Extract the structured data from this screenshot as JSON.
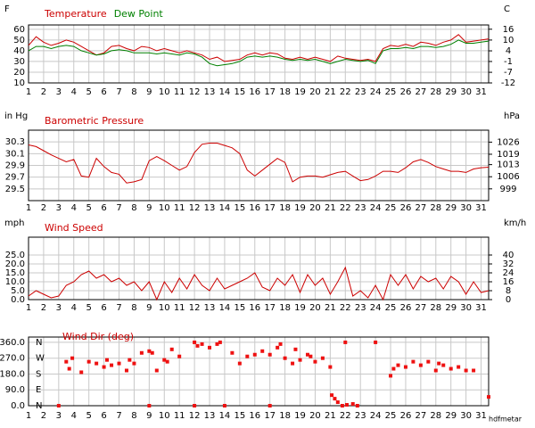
{
  "chart_data": [
    {
      "type": "line",
      "y_label": "F",
      "y2_label": "C",
      "x": [
        1,
        1.5,
        2,
        2.5,
        3,
        3.5,
        4,
        4.5,
        5,
        5.5,
        6,
        6.5,
        7,
        7.5,
        8,
        8.5,
        9,
        9.5,
        10,
        10.5,
        11,
        11.5,
        12,
        12.5,
        13,
        13.5,
        14,
        14.5,
        15,
        15.5,
        16,
        16.5,
        17,
        17.5,
        18,
        18.5,
        19,
        19.5,
        20,
        20.5,
        21,
        21.5,
        22,
        22.5,
        23,
        23.5,
        24,
        24.5,
        25,
        25.5,
        26,
        26.5,
        27,
        27.5,
        28,
        28.5,
        29,
        29.5,
        30,
        30.5,
        31,
        31.5
      ],
      "series": [
        {
          "name": "Temperature",
          "color": "#cc0000",
          "values": [
            45,
            53,
            48,
            45,
            47,
            50,
            48,
            44,
            40,
            36,
            38,
            44,
            45,
            42,
            40,
            44,
            43,
            40,
            42,
            40,
            38,
            40,
            38,
            36,
            32,
            34,
            30,
            31,
            32,
            36,
            38,
            36,
            38,
            37,
            33,
            32,
            34,
            32,
            34,
            32,
            30,
            35,
            33,
            32,
            31,
            32,
            30,
            42,
            45,
            44,
            46,
            44,
            48,
            47,
            45,
            48,
            50,
            55,
            48,
            49,
            50,
            51
          ]
        },
        {
          "name": "Dew Point",
          "color": "#008000",
          "values": [
            40,
            44,
            44,
            42,
            44,
            45,
            44,
            40,
            38,
            36,
            37,
            40,
            41,
            40,
            38,
            38,
            38,
            37,
            38,
            37,
            36,
            38,
            37,
            34,
            28,
            26,
            27,
            28,
            30,
            34,
            35,
            34,
            35,
            34,
            32,
            31,
            32,
            31,
            32,
            30,
            28,
            30,
            32,
            31,
            30,
            31,
            28,
            40,
            42,
            42,
            43,
            42,
            44,
            44,
            43,
            44,
            46,
            50,
            47,
            47,
            48,
            49
          ]
        }
      ],
      "xlim": [
        1,
        31.5
      ],
      "xticks": [
        1,
        2,
        3,
        4,
        5,
        6,
        7,
        8,
        9,
        10,
        11,
        12,
        13,
        14,
        15,
        16,
        17,
        18,
        19,
        20,
        21,
        22,
        23,
        24,
        25,
        26,
        27,
        28,
        29,
        30,
        31
      ],
      "ylim": [
        10,
        64
      ],
      "yticks": [
        10,
        20,
        30,
        40,
        50,
        60
      ],
      "y2lim": [
        -12.2,
        17.8
      ],
      "y2ticks": [
        {
          "value": 15.6,
          "label": "16"
        },
        10,
        {
          "value": 4.4,
          "label": "4"
        },
        {
          "value": -1.1,
          "label": "-1"
        },
        {
          "value": -6.7,
          "label": "-7"
        },
        {
          "value": -12.2,
          "label": "-12"
        }
      ],
      "grid": true
    },
    {
      "type": "line",
      "title": "Barometric Pressure",
      "y_label": "in Hg",
      "y2_label": "hPa",
      "color": "#cc0000",
      "x": [
        1,
        1.5,
        2,
        2.5,
        3,
        3.5,
        4,
        4.5,
        5,
        5.5,
        6,
        6.5,
        7,
        7.5,
        8,
        8.5,
        9,
        9.5,
        10,
        10.5,
        11,
        11.5,
        12,
        12.5,
        13,
        13.5,
        14,
        14.5,
        15,
        15.5,
        16,
        16.5,
        17,
        17.5,
        18,
        18.5,
        19,
        19.5,
        20,
        20.5,
        21,
        21.5,
        22,
        22.5,
        23,
        23.5,
        24,
        24.5,
        25,
        25.5,
        26,
        26.5,
        27,
        27.5,
        28,
        28.5,
        29,
        29.5,
        30,
        30.5,
        31,
        31.5
      ],
      "values": [
        30.25,
        30.22,
        30.15,
        30.08,
        30.02,
        29.96,
        30.0,
        29.72,
        29.7,
        30.02,
        29.88,
        29.78,
        29.75,
        29.6,
        29.62,
        29.66,
        29.98,
        30.05,
        29.98,
        29.9,
        29.82,
        29.88,
        30.12,
        30.26,
        30.28,
        30.28,
        30.24,
        30.2,
        30.1,
        29.82,
        29.72,
        29.82,
        29.92,
        30.02,
        29.95,
        29.62,
        29.7,
        29.72,
        29.72,
        29.7,
        29.74,
        29.78,
        29.8,
        29.72,
        29.64,
        29.66,
        29.72,
        29.8,
        29.8,
        29.78,
        29.86,
        29.96,
        30.0,
        29.95,
        29.88,
        29.84,
        29.8,
        29.8,
        29.78,
        29.84,
        29.86,
        29.87
      ],
      "xlim": [
        1,
        31.5
      ],
      "xticks": [
        1,
        2,
        3,
        4,
        5,
        6,
        7,
        8,
        9,
        10,
        11,
        12,
        13,
        14,
        15,
        16,
        17,
        18,
        19,
        20,
        21,
        22,
        23,
        24,
        25,
        26,
        27,
        28,
        29,
        30,
        31
      ],
      "ylim": [
        29.3,
        30.5
      ],
      "yticks": [
        29.5,
        29.7,
        29.9,
        30.1,
        30.3
      ],
      "y2lim": [
        992.2,
        1032.9
      ],
      "y2ticks": [
        999,
        1006,
        1013,
        1019,
        1026
      ],
      "grid": true
    },
    {
      "type": "line",
      "title": "Wind Speed",
      "y_label": "mph",
      "y2_label": "km/h",
      "color": "#cc0000",
      "x": [
        1,
        1.5,
        2,
        2.5,
        3,
        3.5,
        4,
        4.5,
        5,
        5.5,
        6,
        6.5,
        7,
        7.5,
        8,
        8.5,
        9,
        9.5,
        10,
        10.5,
        11,
        11.5,
        12,
        12.5,
        13,
        13.5,
        14,
        14.5,
        15,
        15.5,
        16,
        16.5,
        17,
        17.5,
        18,
        18.5,
        19,
        19.5,
        20,
        20.5,
        21,
        21.5,
        22,
        22.5,
        23,
        23.5,
        24,
        24.5,
        25,
        25.5,
        26,
        26.5,
        27,
        27.5,
        28,
        28.5,
        29,
        29.5,
        30,
        30.5,
        31,
        31.5
      ],
      "values": [
        2,
        5,
        3,
        1,
        2,
        8,
        10,
        14,
        16,
        12,
        14,
        10,
        12,
        8,
        10,
        5,
        10,
        0,
        10,
        4,
        12,
        6,
        14,
        8,
        5,
        12,
        6,
        8,
        10,
        12,
        15,
        7,
        5,
        12,
        8,
        14,
        4,
        14,
        8,
        12,
        3,
        10,
        18,
        2,
        5,
        1,
        8,
        0,
        14,
        8,
        14,
        6,
        13,
        10,
        12,
        6,
        13,
        10,
        3,
        10,
        4,
        5
      ],
      "xlim": [
        1,
        31.5
      ],
      "xticks": [
        1,
        2,
        3,
        4,
        5,
        6,
        7,
        8,
        9,
        10,
        11,
        12,
        13,
        14,
        15,
        16,
        17,
        18,
        19,
        20,
        21,
        22,
        23,
        24,
        25,
        26,
        27,
        28,
        29,
        30,
        31
      ],
      "ylim": [
        0,
        35
      ],
      "yticks": [
        {
          "value": 0,
          "label": "0.0"
        },
        {
          "value": 5,
          "label": "5.0"
        },
        {
          "value": 10,
          "label": "10.0"
        },
        {
          "value": 15,
          "label": "15.0"
        },
        {
          "value": 20,
          "label": "20.0"
        },
        {
          "value": 25,
          "label": "25.0"
        }
      ],
      "y2lim": [
        0,
        56
      ],
      "y2ticks": [
        0,
        8,
        16,
        24,
        32,
        40
      ],
      "grid": true
    },
    {
      "type": "scatter",
      "title": "Wind Dir (deg)",
      "color": "#ee1111",
      "footer": "hdfmetar",
      "x": [
        3.5,
        3.7,
        3.9,
        4.5,
        5,
        5.5,
        6,
        6.2,
        6.5,
        7,
        7.5,
        7.7,
        8,
        8.5,
        9,
        9.2,
        9.5,
        10,
        10.2,
        10.5,
        11,
        12,
        12.2,
        12.5,
        13,
        13.5,
        13.7,
        14.5,
        15,
        15.5,
        16,
        16.5,
        17,
        17.5,
        17.7,
        18,
        18.5,
        18.7,
        19,
        19.5,
        19.7,
        20,
        20.5,
        21,
        21.1,
        21.3,
        21.5,
        22,
        22.1,
        22.5,
        24,
        25,
        25.2,
        25.5,
        26,
        26.5,
        27,
        27.5,
        28,
        28.2,
        28.5,
        29,
        29.5,
        30,
        30.5,
        31.5,
        3,
        9,
        12,
        14,
        17,
        21.8,
        22.8
      ],
      "values": [
        250,
        210,
        270,
        190,
        250,
        240,
        220,
        260,
        230,
        240,
        200,
        260,
        240,
        300,
        310,
        300,
        200,
        260,
        250,
        320,
        280,
        360,
        340,
        350,
        330,
        350,
        360,
        300,
        240,
        280,
        290,
        310,
        290,
        330,
        350,
        270,
        240,
        320,
        260,
        290,
        280,
        250,
        270,
        220,
        60,
        40,
        20,
        360,
        5,
        10,
        360,
        170,
        210,
        230,
        220,
        250,
        230,
        250,
        200,
        240,
        230,
        210,
        220,
        200,
        200,
        50,
        0,
        0,
        0,
        0,
        0,
        0,
        0
      ],
      "xlim": [
        1,
        31.5
      ],
      "xticks": [
        1,
        2,
        3,
        4,
        5,
        6,
        7,
        8,
        9,
        10,
        11,
        12,
        13,
        14,
        15,
        16,
        17,
        18,
        19,
        20,
        21,
        22,
        23,
        24,
        25,
        26,
        27,
        28,
        29,
        30,
        31
      ],
      "ylim": [
        0,
        390
      ],
      "yticks": [
        {
          "value": 0,
          "label": "0.0"
        },
        {
          "value": 90,
          "label": "90.0"
        },
        {
          "value": 180,
          "label": "180.0"
        },
        {
          "value": 270,
          "label": "270.0"
        },
        {
          "value": 360,
          "label": "360.0"
        }
      ],
      "compass": [
        {
          "value": 360,
          "label": "N"
        },
        {
          "value": 270,
          "label": "W"
        },
        {
          "value": 180,
          "label": "S"
        },
        {
          "value": 90,
          "label": "E"
        },
        {
          "value": 0,
          "label": "N"
        }
      ],
      "grid": true
    }
  ]
}
